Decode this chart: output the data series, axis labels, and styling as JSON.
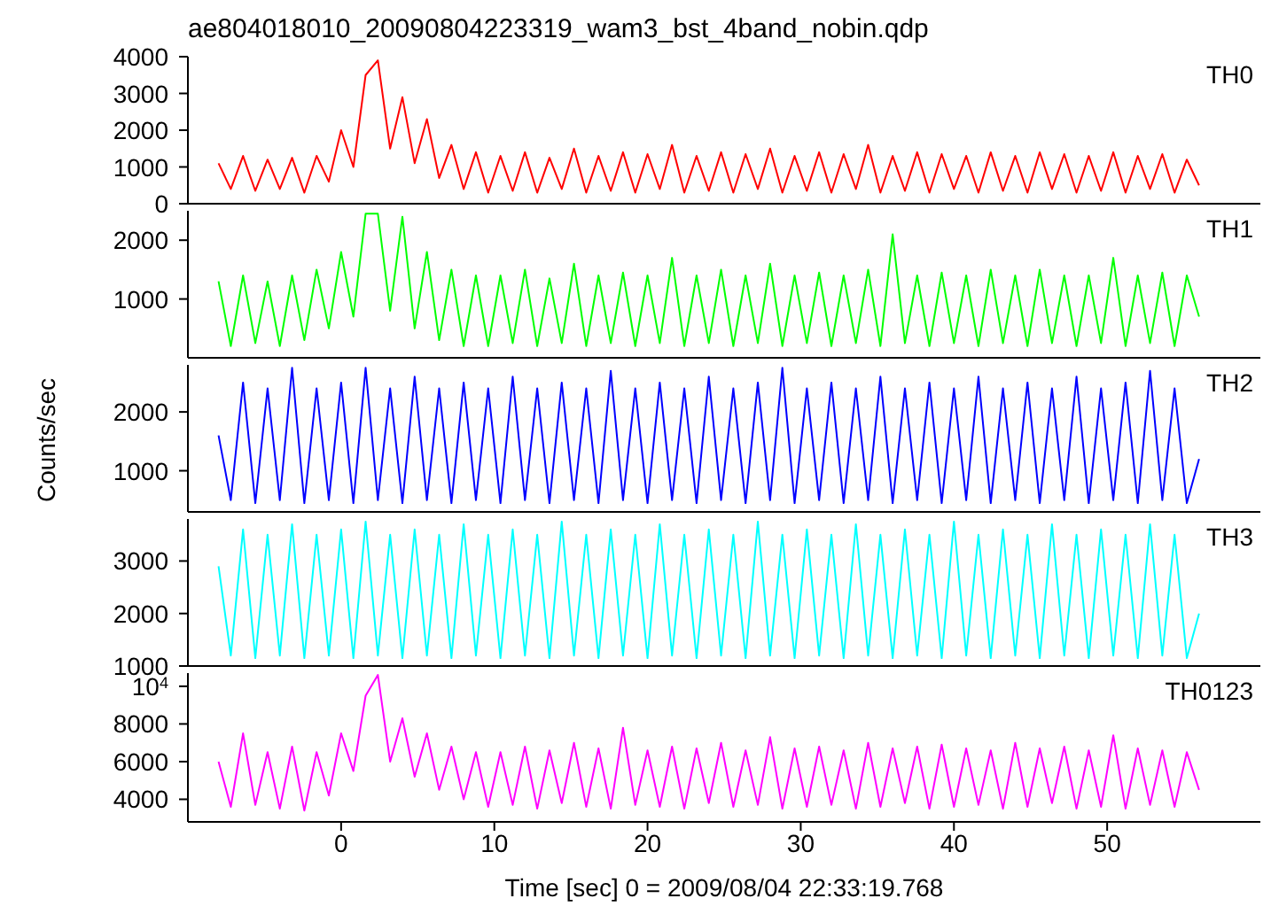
{
  "chart_data": [
    {
      "type": "line",
      "title": "ae804018010_20090804223319_wam3_bst_4band_nobin.qdp",
      "x": [
        -8,
        -7.2,
        -6.4,
        -5.6,
        -4.8,
        -4,
        -3.2,
        -2.4,
        -1.6,
        -0.8,
        0,
        0.8,
        1.6,
        2.4,
        3.2,
        4,
        4.8,
        5.6,
        6.4,
        7.2,
        8,
        8.8,
        9.6,
        10.4,
        11.2,
        12,
        12.8,
        13.6,
        14.4,
        15.2,
        16,
        16.8,
        17.6,
        18.4,
        19.2,
        20,
        20.8,
        21.6,
        22.4,
        23.2,
        24,
        24.8,
        25.6,
        26.4,
        27.2,
        28,
        28.8,
        29.6,
        30.4,
        31.2,
        32,
        32.8,
        33.6,
        34.4,
        35.2,
        36,
        36.8,
        37.6,
        38.4,
        39.2,
        40,
        40.8,
        41.6,
        42.4,
        43.2,
        44,
        44.8,
        45.6,
        46.4,
        47.2,
        48,
        48.8,
        49.6,
        50.4,
        51.2,
        52,
        52.8,
        53.6,
        54.4,
        55.2,
        56
      ],
      "series": [
        {
          "name": "TH0",
          "color": "#ff0000",
          "values": [
            1100,
            400,
            1300,
            350,
            1200,
            400,
            1250,
            300,
            1300,
            600,
            2000,
            1000,
            3500,
            3900,
            1500,
            2900,
            1100,
            2300,
            700,
            1600,
            400,
            1400,
            300,
            1300,
            350,
            1400,
            300,
            1250,
            400,
            1500,
            300,
            1300,
            350,
            1400,
            300,
            1350,
            400,
            1600,
            300,
            1300,
            350,
            1400,
            300,
            1350,
            400,
            1500,
            300,
            1300,
            350,
            1400,
            300,
            1350,
            400,
            1600,
            300,
            1300,
            350,
            1400,
            300,
            1350,
            400,
            1300,
            300,
            1400,
            350,
            1300,
            300,
            1400,
            400,
            1350,
            300,
            1300,
            350,
            1400,
            300,
            1300,
            400,
            1350,
            300,
            1200,
            500
          ]
        }
      ],
      "xlim": [
        -10,
        60
      ],
      "xticks": [
        0,
        10,
        20,
        30,
        40,
        50
      ],
      "ylim": [
        0,
        4000
      ],
      "yticks": [
        0,
        1000,
        2000,
        3000,
        4000
      ],
      "tick_labels": "y"
    },
    {
      "type": "line",
      "x": [
        -8,
        -7.2,
        -6.4,
        -5.6,
        -4.8,
        -4,
        -3.2,
        -2.4,
        -1.6,
        -0.8,
        0,
        0.8,
        1.6,
        2.4,
        3.2,
        4,
        4.8,
        5.6,
        6.4,
        7.2,
        8,
        8.8,
        9.6,
        10.4,
        11.2,
        12,
        12.8,
        13.6,
        14.4,
        15.2,
        16,
        16.8,
        17.6,
        18.4,
        19.2,
        20,
        20.8,
        21.6,
        22.4,
        23.2,
        24,
        24.8,
        25.6,
        26.4,
        27.2,
        28,
        28.8,
        29.6,
        30.4,
        31.2,
        32,
        32.8,
        33.6,
        34.4,
        35.2,
        36,
        36.8,
        37.6,
        38.4,
        39.2,
        40,
        40.8,
        41.6,
        42.4,
        43.2,
        44,
        44.8,
        45.6,
        46.4,
        47.2,
        48,
        48.8,
        49.6,
        50.4,
        51.2,
        52,
        52.8,
        53.6,
        54.4,
        55.2,
        56
      ],
      "series": [
        {
          "name": "TH1",
          "color": "#00ff00",
          "values": [
            1300,
            200,
            1400,
            250,
            1300,
            200,
            1400,
            300,
            1500,
            500,
            1800,
            700,
            2450,
            2450,
            800,
            2400,
            500,
            1800,
            300,
            1500,
            200,
            1400,
            200,
            1400,
            250,
            1500,
            200,
            1350,
            250,
            1600,
            200,
            1400,
            250,
            1450,
            200,
            1400,
            250,
            1700,
            200,
            1400,
            250,
            1500,
            200,
            1400,
            250,
            1600,
            200,
            1400,
            250,
            1450,
            200,
            1400,
            250,
            1500,
            200,
            2100,
            250,
            1400,
            200,
            1450,
            250,
            1400,
            200,
            1500,
            250,
            1400,
            200,
            1500,
            250,
            1400,
            200,
            1400,
            250,
            1700,
            200,
            1400,
            250,
            1450,
            200,
            1400,
            700
          ]
        }
      ],
      "xlim": [
        -10,
        60
      ],
      "xticks": [
        0,
        10,
        20,
        30,
        40,
        50
      ],
      "ylim": [
        0,
        2500
      ],
      "yticks": [
        1000,
        2000
      ],
      "tick_labels": "y"
    },
    {
      "type": "line",
      "ylabel": "Counts/sec",
      "x": [
        -8,
        -7.2,
        -6.4,
        -5.6,
        -4.8,
        -4,
        -3.2,
        -2.4,
        -1.6,
        -0.8,
        0,
        0.8,
        1.6,
        2.4,
        3.2,
        4,
        4.8,
        5.6,
        6.4,
        7.2,
        8,
        8.8,
        9.6,
        10.4,
        11.2,
        12,
        12.8,
        13.6,
        14.4,
        15.2,
        16,
        16.8,
        17.6,
        18.4,
        19.2,
        20,
        20.8,
        21.6,
        22.4,
        23.2,
        24,
        24.8,
        25.6,
        26.4,
        27.2,
        28,
        28.8,
        29.6,
        30.4,
        31.2,
        32,
        32.8,
        33.6,
        34.4,
        35.2,
        36,
        36.8,
        37.6,
        38.4,
        39.2,
        40,
        40.8,
        41.6,
        42.4,
        43.2,
        44,
        44.8,
        45.6,
        46.4,
        47.2,
        48,
        48.8,
        49.6,
        50.4,
        51.2,
        52,
        52.8,
        53.6,
        54.4,
        55.2,
        56
      ],
      "series": [
        {
          "name": "TH2",
          "color": "#0000ff",
          "values": [
            1600,
            500,
            2500,
            450,
            2400,
            500,
            2750,
            450,
            2400,
            500,
            2500,
            450,
            2750,
            500,
            2400,
            450,
            2600,
            500,
            2400,
            450,
            2500,
            500,
            2400,
            450,
            2600,
            500,
            2400,
            450,
            2500,
            500,
            2400,
            450,
            2700,
            500,
            2400,
            450,
            2500,
            500,
            2400,
            450,
            2600,
            500,
            2400,
            450,
            2500,
            500,
            2750,
            450,
            2400,
            500,
            2500,
            450,
            2400,
            500,
            2600,
            450,
            2400,
            500,
            2500,
            450,
            2400,
            500,
            2600,
            450,
            2400,
            500,
            2500,
            450,
            2400,
            500,
            2600,
            450,
            2400,
            500,
            2500,
            450,
            2700,
            500,
            2400,
            450,
            1200
          ]
        }
      ],
      "xlim": [
        -10,
        60
      ],
      "xticks": [
        0,
        10,
        20,
        30,
        40,
        50
      ],
      "ylim": [
        300,
        2800
      ],
      "yticks": [
        1000,
        2000
      ],
      "tick_labels": "y"
    },
    {
      "type": "line",
      "x": [
        -8,
        -7.2,
        -6.4,
        -5.6,
        -4.8,
        -4,
        -3.2,
        -2.4,
        -1.6,
        -0.8,
        0,
        0.8,
        1.6,
        2.4,
        3.2,
        4,
        4.8,
        5.6,
        6.4,
        7.2,
        8,
        8.8,
        9.6,
        10.4,
        11.2,
        12,
        12.8,
        13.6,
        14.4,
        15.2,
        16,
        16.8,
        17.6,
        18.4,
        19.2,
        20,
        20.8,
        21.6,
        22.4,
        23.2,
        24,
        24.8,
        25.6,
        26.4,
        27.2,
        28,
        28.8,
        29.6,
        30.4,
        31.2,
        32,
        32.8,
        33.6,
        34.4,
        35.2,
        36,
        36.8,
        37.6,
        38.4,
        39.2,
        40,
        40.8,
        41.6,
        42.4,
        43.2,
        44,
        44.8,
        45.6,
        46.4,
        47.2,
        48,
        48.8,
        49.6,
        50.4,
        51.2,
        52,
        52.8,
        53.6,
        54.4,
        55.2,
        56
      ],
      "series": [
        {
          "name": "TH3",
          "color": "#00ffff",
          "values": [
            2900,
            1200,
            3600,
            1150,
            3500,
            1200,
            3700,
            1150,
            3500,
            1200,
            3600,
            1150,
            3750,
            1200,
            3500,
            1150,
            3600,
            1200,
            3500,
            1150,
            3700,
            1200,
            3500,
            1150,
            3600,
            1200,
            3500,
            1150,
            3750,
            1200,
            3500,
            1150,
            3600,
            1200,
            3500,
            1150,
            3700,
            1200,
            3500,
            1150,
            3600,
            1200,
            3500,
            1150,
            3750,
            1200,
            3500,
            1150,
            3600,
            1200,
            3500,
            1150,
            3700,
            1200,
            3500,
            1150,
            3600,
            1200,
            3500,
            1150,
            3750,
            1200,
            3500,
            1150,
            3600,
            1200,
            3500,
            1150,
            3700,
            1200,
            3500,
            1150,
            3600,
            1200,
            3500,
            1150,
            3700,
            1200,
            3500,
            1150,
            2000
          ]
        }
      ],
      "xlim": [
        -10,
        60
      ],
      "xticks": [
        0,
        10,
        20,
        30,
        40,
        50
      ],
      "ylim": [
        1000,
        3800
      ],
      "yticks": [
        1000,
        2000,
        3000
      ],
      "tick_labels": "y"
    },
    {
      "type": "line",
      "xlabel": "Time [sec] 0 = 2009/08/04 22:33:19.768",
      "x": [
        -8,
        -7.2,
        -6.4,
        -5.6,
        -4.8,
        -4,
        -3.2,
        -2.4,
        -1.6,
        -0.8,
        0,
        0.8,
        1.6,
        2.4,
        3.2,
        4,
        4.8,
        5.6,
        6.4,
        7.2,
        8,
        8.8,
        9.6,
        10.4,
        11.2,
        12,
        12.8,
        13.6,
        14.4,
        15.2,
        16,
        16.8,
        17.6,
        18.4,
        19.2,
        20,
        20.8,
        21.6,
        22.4,
        23.2,
        24,
        24.8,
        25.6,
        26.4,
        27.2,
        28,
        28.8,
        29.6,
        30.4,
        31.2,
        32,
        32.8,
        33.6,
        34.4,
        35.2,
        36,
        36.8,
        37.6,
        38.4,
        39.2,
        40,
        40.8,
        41.6,
        42.4,
        43.2,
        44,
        44.8,
        45.6,
        46.4,
        47.2,
        48,
        48.8,
        49.6,
        50.4,
        51.2,
        52,
        52.8,
        53.6,
        54.4,
        55.2,
        56
      ],
      "series": [
        {
          "name": "TH0123",
          "color": "#ff00ff",
          "values": [
            6000,
            3600,
            7500,
            3700,
            6500,
            3500,
            6800,
            3400,
            6500,
            4200,
            7500,
            5500,
            9500,
            10600,
            6000,
            8300,
            5200,
            7500,
            4500,
            6800,
            4000,
            6500,
            3600,
            6500,
            3700,
            6800,
            3500,
            6600,
            3800,
            7000,
            3600,
            6700,
            3500,
            7800,
            3700,
            6600,
            3600,
            6800,
            3500,
            6700,
            3800,
            7000,
            3600,
            6600,
            3700,
            7300,
            3500,
            6700,
            3600,
            6800,
            3700,
            6600,
            3500,
            7000,
            3600,
            6700,
            3800,
            6800,
            3500,
            6900,
            3600,
            6700,
            3700,
            6600,
            3500,
            7000,
            3600,
            6700,
            3800,
            6800,
            3500,
            6600,
            3600,
            7400,
            3500,
            6700,
            3700,
            6600,
            3600,
            6500,
            4500
          ]
        }
      ],
      "xlim": [
        -10,
        60
      ],
      "xticks": [
        0,
        10,
        20,
        30,
        40,
        50
      ],
      "ylim": [
        2800,
        10700
      ],
      "yticks": [
        4000,
        6000,
        8000,
        {
          "value": 10000,
          "label": "10$^{4}$"
        }
      ]
    }
  ]
}
